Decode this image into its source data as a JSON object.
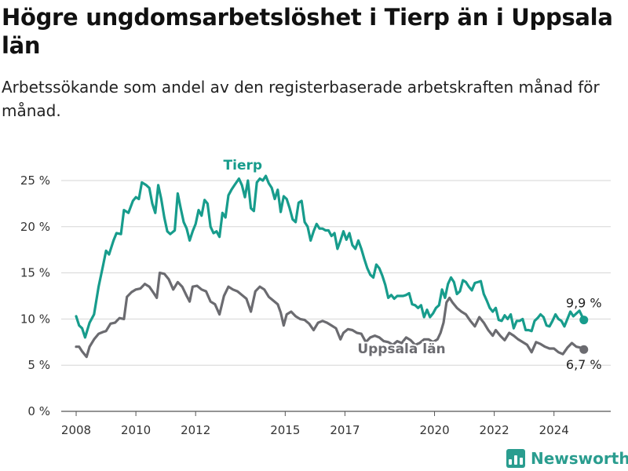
{
  "header": {
    "title": "Högre ungdomsarbetslöshet i Tierp än i Uppsala län",
    "subtitle": "Arbetssökande som andel av den registerbaserade arbetskraften månad för månad."
  },
  "brand": {
    "name": "Newsworthy",
    "icon": "newsworthy-logo-icon",
    "color": "#2a9d8f"
  },
  "chart_data": {
    "type": "line",
    "title": "Högre ungdomsarbetslöshet i Tierp än i Uppsala län",
    "subtitle": "Arbetssökande som andel av den registerbaserade arbetskraften månad för månad.",
    "xlabel": "",
    "ylabel": "",
    "ylim": [
      0,
      25
    ],
    "xlim": [
      2007.5,
      2025.9
    ],
    "grid": true,
    "y_ticks": [
      0,
      5,
      10,
      15,
      20,
      25
    ],
    "y_tick_labels": [
      "0 %",
      "5 %",
      "10 %",
      "15 %",
      "20 %",
      "25 %"
    ],
    "x_ticks": [
      2008,
      2010,
      2012,
      2015,
      2017,
      2020,
      2022,
      2024
    ],
    "x_tick_labels": [
      "2008",
      "2010",
      "2012",
      "2015",
      "2017",
      "2020",
      "2022",
      "2024"
    ],
    "series": [
      {
        "name": "Tierp",
        "color": "#179c8c",
        "end_label": "9,9 %",
        "points": [
          [
            2008.0,
            10.3
          ],
          [
            2008.1,
            9.3
          ],
          [
            2008.2,
            9.0
          ],
          [
            2008.3,
            8.0
          ],
          [
            2008.45,
            9.6
          ],
          [
            2008.6,
            10.5
          ],
          [
            2008.75,
            13.5
          ],
          [
            2008.9,
            15.8
          ],
          [
            2009.0,
            17.4
          ],
          [
            2009.1,
            17.0
          ],
          [
            2009.25,
            18.5
          ],
          [
            2009.35,
            19.3
          ],
          [
            2009.5,
            19.2
          ],
          [
            2009.6,
            21.8
          ],
          [
            2009.75,
            21.5
          ],
          [
            2009.9,
            22.8
          ],
          [
            2010.0,
            23.2
          ],
          [
            2010.1,
            23.0
          ],
          [
            2010.2,
            24.8
          ],
          [
            2010.35,
            24.5
          ],
          [
            2010.45,
            24.2
          ],
          [
            2010.55,
            22.5
          ],
          [
            2010.65,
            21.5
          ],
          [
            2010.75,
            24.5
          ],
          [
            2010.85,
            23.0
          ],
          [
            2010.95,
            21.0
          ],
          [
            2011.05,
            19.5
          ],
          [
            2011.15,
            19.2
          ],
          [
            2011.3,
            19.6
          ],
          [
            2011.4,
            23.6
          ],
          [
            2011.5,
            22.0
          ],
          [
            2011.6,
            20.5
          ],
          [
            2011.7,
            19.8
          ],
          [
            2011.8,
            18.5
          ],
          [
            2011.9,
            19.5
          ],
          [
            2012.0,
            20.3
          ],
          [
            2012.1,
            21.8
          ],
          [
            2012.2,
            21.2
          ],
          [
            2012.3,
            22.9
          ],
          [
            2012.4,
            22.5
          ],
          [
            2012.5,
            20.0
          ],
          [
            2012.6,
            19.3
          ],
          [
            2012.7,
            19.5
          ],
          [
            2012.8,
            18.9
          ],
          [
            2012.9,
            21.5
          ],
          [
            2013.0,
            21.0
          ],
          [
            2013.1,
            23.4
          ],
          [
            2013.2,
            24.0
          ],
          [
            2013.3,
            24.5
          ],
          [
            2013.45,
            25.2
          ],
          [
            2013.55,
            24.5
          ],
          [
            2013.65,
            23.2
          ],
          [
            2013.75,
            25.0
          ],
          [
            2013.85,
            22.0
          ],
          [
            2013.95,
            21.7
          ],
          [
            2014.05,
            24.8
          ],
          [
            2014.15,
            25.2
          ],
          [
            2014.25,
            25.0
          ],
          [
            2014.35,
            25.5
          ],
          [
            2014.45,
            24.7
          ],
          [
            2014.55,
            24.2
          ],
          [
            2014.65,
            23.0
          ],
          [
            2014.75,
            24.0
          ],
          [
            2014.85,
            21.6
          ],
          [
            2014.95,
            23.3
          ],
          [
            2015.05,
            23.0
          ],
          [
            2015.15,
            22.0
          ],
          [
            2015.25,
            20.8
          ],
          [
            2015.35,
            20.5
          ],
          [
            2015.45,
            22.6
          ],
          [
            2015.55,
            22.8
          ],
          [
            2015.65,
            20.5
          ],
          [
            2015.75,
            20.0
          ],
          [
            2015.85,
            18.5
          ],
          [
            2015.95,
            19.5
          ],
          [
            2016.05,
            20.3
          ],
          [
            2016.15,
            19.8
          ],
          [
            2016.25,
            19.8
          ],
          [
            2016.35,
            19.6
          ],
          [
            2016.45,
            19.6
          ],
          [
            2016.55,
            19.0
          ],
          [
            2016.65,
            19.3
          ],
          [
            2016.75,
            17.6
          ],
          [
            2016.85,
            18.5
          ],
          [
            2016.95,
            19.5
          ],
          [
            2017.05,
            18.6
          ],
          [
            2017.15,
            19.3
          ],
          [
            2017.25,
            18.0
          ],
          [
            2017.35,
            17.6
          ],
          [
            2017.45,
            18.5
          ],
          [
            2017.55,
            17.6
          ],
          [
            2017.65,
            16.5
          ],
          [
            2017.75,
            15.5
          ],
          [
            2017.85,
            14.8
          ],
          [
            2017.95,
            14.5
          ],
          [
            2018.05,
            15.9
          ],
          [
            2018.15,
            15.5
          ],
          [
            2018.25,
            14.7
          ],
          [
            2018.35,
            13.7
          ],
          [
            2018.45,
            12.3
          ],
          [
            2018.55,
            12.6
          ],
          [
            2018.65,
            12.2
          ],
          [
            2018.75,
            12.5
          ],
          [
            2018.85,
            12.5
          ],
          [
            2018.95,
            12.5
          ],
          [
            2019.05,
            12.6
          ],
          [
            2019.15,
            12.8
          ],
          [
            2019.25,
            11.6
          ],
          [
            2019.35,
            11.5
          ],
          [
            2019.45,
            11.2
          ],
          [
            2019.55,
            11.5
          ],
          [
            2019.65,
            10.2
          ],
          [
            2019.75,
            11.0
          ],
          [
            2019.85,
            10.2
          ],
          [
            2019.95,
            10.6
          ],
          [
            2020.05,
            11.2
          ],
          [
            2020.15,
            11.5
          ],
          [
            2020.25,
            13.2
          ],
          [
            2020.35,
            12.3
          ],
          [
            2020.45,
            13.8
          ],
          [
            2020.55,
            14.5
          ],
          [
            2020.65,
            14.0
          ],
          [
            2020.75,
            12.7
          ],
          [
            2020.85,
            13.0
          ],
          [
            2020.95,
            14.2
          ],
          [
            2021.05,
            14.0
          ],
          [
            2021.15,
            13.5
          ],
          [
            2021.25,
            13.1
          ],
          [
            2021.35,
            13.9
          ],
          [
            2021.45,
            14.0
          ],
          [
            2021.55,
            14.1
          ],
          [
            2021.65,
            12.7
          ],
          [
            2021.75,
            12.0
          ],
          [
            2021.85,
            11.2
          ],
          [
            2021.95,
            10.8
          ],
          [
            2022.05,
            11.2
          ],
          [
            2022.15,
            9.9
          ],
          [
            2022.25,
            9.8
          ],
          [
            2022.35,
            10.4
          ],
          [
            2022.45,
            10.0
          ],
          [
            2022.55,
            10.5
          ],
          [
            2022.65,
            9.0
          ],
          [
            2022.75,
            9.8
          ],
          [
            2022.85,
            9.8
          ],
          [
            2022.95,
            10.0
          ],
          [
            2023.05,
            8.8
          ],
          [
            2023.15,
            8.8
          ],
          [
            2023.25,
            8.7
          ],
          [
            2023.35,
            9.8
          ],
          [
            2023.45,
            10.1
          ],
          [
            2023.55,
            10.5
          ],
          [
            2023.65,
            10.2
          ],
          [
            2023.75,
            9.3
          ],
          [
            2023.85,
            9.2
          ],
          [
            2023.95,
            9.8
          ],
          [
            2024.05,
            10.5
          ],
          [
            2024.15,
            10.0
          ],
          [
            2024.25,
            9.8
          ],
          [
            2024.35,
            9.2
          ],
          [
            2024.45,
            10.0
          ],
          [
            2024.55,
            10.8
          ],
          [
            2024.65,
            10.3
          ],
          [
            2024.75,
            10.6
          ],
          [
            2024.85,
            10.9
          ],
          [
            2025.0,
            9.9
          ]
        ]
      },
      {
        "name": "Uppsala län",
        "color": "#6b6b70",
        "end_label": "6,7 %",
        "points": [
          [
            2008.0,
            7.0
          ],
          [
            2008.1,
            7.0
          ],
          [
            2008.2,
            6.5
          ],
          [
            2008.35,
            5.9
          ],
          [
            2008.45,
            7.0
          ],
          [
            2008.6,
            7.8
          ],
          [
            2008.75,
            8.4
          ],
          [
            2008.9,
            8.6
          ],
          [
            2009.0,
            8.7
          ],
          [
            2009.15,
            9.5
          ],
          [
            2009.3,
            9.6
          ],
          [
            2009.45,
            10.1
          ],
          [
            2009.6,
            10.0
          ],
          [
            2009.7,
            12.4
          ],
          [
            2009.85,
            12.9
          ],
          [
            2010.0,
            13.2
          ],
          [
            2010.15,
            13.3
          ],
          [
            2010.3,
            13.8
          ],
          [
            2010.45,
            13.5
          ],
          [
            2010.6,
            12.8
          ],
          [
            2010.7,
            12.3
          ],
          [
            2010.8,
            15.0
          ],
          [
            2010.95,
            14.9
          ],
          [
            2011.1,
            14.3
          ],
          [
            2011.25,
            13.2
          ],
          [
            2011.4,
            14.0
          ],
          [
            2011.55,
            13.5
          ],
          [
            2011.7,
            12.5
          ],
          [
            2011.8,
            11.9
          ],
          [
            2011.9,
            13.5
          ],
          [
            2012.05,
            13.6
          ],
          [
            2012.2,
            13.2
          ],
          [
            2012.35,
            13.0
          ],
          [
            2012.5,
            11.9
          ],
          [
            2012.65,
            11.6
          ],
          [
            2012.8,
            10.5
          ],
          [
            2012.95,
            12.5
          ],
          [
            2013.1,
            13.5
          ],
          [
            2013.25,
            13.2
          ],
          [
            2013.4,
            13.0
          ],
          [
            2013.55,
            12.6
          ],
          [
            2013.7,
            12.2
          ],
          [
            2013.85,
            10.8
          ],
          [
            2014.0,
            13.0
          ],
          [
            2014.15,
            13.5
          ],
          [
            2014.3,
            13.2
          ],
          [
            2014.45,
            12.4
          ],
          [
            2014.6,
            12.0
          ],
          [
            2014.75,
            11.6
          ],
          [
            2014.85,
            10.7
          ],
          [
            2014.95,
            9.3
          ],
          [
            2015.05,
            10.5
          ],
          [
            2015.2,
            10.8
          ],
          [
            2015.35,
            10.3
          ],
          [
            2015.5,
            10.0
          ],
          [
            2015.65,
            9.9
          ],
          [
            2015.8,
            9.5
          ],
          [
            2015.95,
            8.8
          ],
          [
            2016.1,
            9.6
          ],
          [
            2016.25,
            9.8
          ],
          [
            2016.4,
            9.6
          ],
          [
            2016.55,
            9.3
          ],
          [
            2016.7,
            9.0
          ],
          [
            2016.85,
            7.8
          ],
          [
            2016.95,
            8.5
          ],
          [
            2017.1,
            8.9
          ],
          [
            2017.25,
            8.8
          ],
          [
            2017.4,
            8.5
          ],
          [
            2017.55,
            8.4
          ],
          [
            2017.7,
            7.5
          ],
          [
            2017.85,
            8.0
          ],
          [
            2018.0,
            8.2
          ],
          [
            2018.15,
            8.0
          ],
          [
            2018.3,
            7.6
          ],
          [
            2018.45,
            7.5
          ],
          [
            2018.6,
            7.2
          ],
          [
            2018.75,
            7.6
          ],
          [
            2018.9,
            7.4
          ],
          [
            2019.05,
            8.0
          ],
          [
            2019.2,
            7.7
          ],
          [
            2019.35,
            7.2
          ],
          [
            2019.5,
            7.4
          ],
          [
            2019.65,
            7.8
          ],
          [
            2019.8,
            7.8
          ],
          [
            2019.95,
            7.5
          ],
          [
            2020.1,
            7.8
          ],
          [
            2020.2,
            8.5
          ],
          [
            2020.3,
            9.6
          ],
          [
            2020.4,
            11.8
          ],
          [
            2020.5,
            12.3
          ],
          [
            2020.6,
            11.8
          ],
          [
            2020.75,
            11.2
          ],
          [
            2020.9,
            10.8
          ],
          [
            2021.05,
            10.5
          ],
          [
            2021.2,
            9.8
          ],
          [
            2021.35,
            9.2
          ],
          [
            2021.5,
            10.2
          ],
          [
            2021.65,
            9.6
          ],
          [
            2021.8,
            8.8
          ],
          [
            2021.95,
            8.2
          ],
          [
            2022.05,
            8.8
          ],
          [
            2022.2,
            8.2
          ],
          [
            2022.35,
            7.7
          ],
          [
            2022.5,
            8.5
          ],
          [
            2022.65,
            8.2
          ],
          [
            2022.8,
            7.8
          ],
          [
            2022.95,
            7.5
          ],
          [
            2023.1,
            7.2
          ],
          [
            2023.25,
            6.4
          ],
          [
            2023.4,
            7.5
          ],
          [
            2023.55,
            7.3
          ],
          [
            2023.7,
            7.0
          ],
          [
            2023.85,
            6.8
          ],
          [
            2024.0,
            6.8
          ],
          [
            2024.15,
            6.4
          ],
          [
            2024.3,
            6.2
          ],
          [
            2024.45,
            6.9
          ],
          [
            2024.6,
            7.4
          ],
          [
            2024.75,
            7.0
          ],
          [
            2024.9,
            6.9
          ],
          [
            2025.0,
            6.7
          ]
        ]
      }
    ]
  }
}
